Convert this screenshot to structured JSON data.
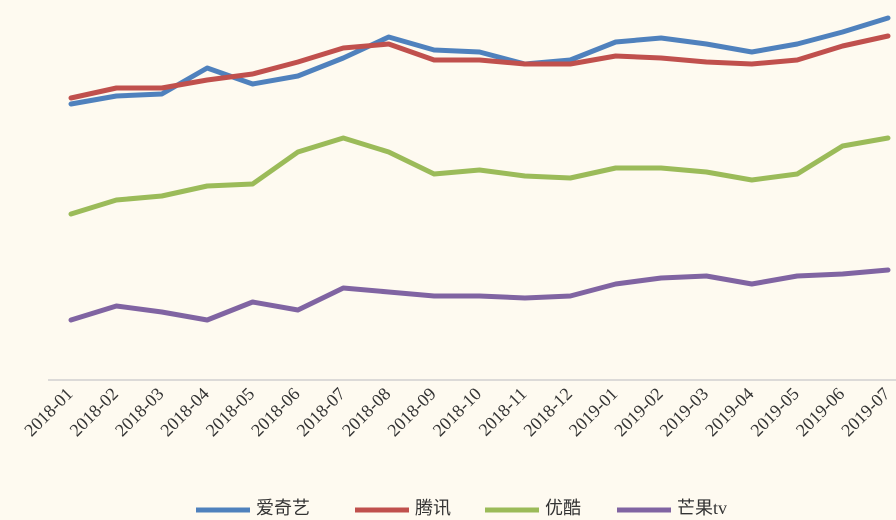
{
  "chart_data": {
    "type": "line",
    "categories": [
      "2018-01",
      "2018-02",
      "2018-03",
      "2018-04",
      "2018-05",
      "2018-06",
      "2018-07",
      "2018-08",
      "2018-09",
      "2018-10",
      "2018-11",
      "2018-12",
      "2019-01",
      "2019-02",
      "2019-03",
      "2019-04",
      "2019-05",
      "2019-06",
      "2019-07"
    ],
    "series": [
      {
        "name": "爱奇艺",
        "color": "#4f81bd",
        "values": [
          276,
          284,
          286,
          312,
          296,
          304,
          322,
          343,
          330,
          328,
          316,
          320,
          338,
          342,
          336,
          328,
          336,
          348,
          362
        ]
      },
      {
        "name": "腾讯",
        "color": "#c0504d",
        "values": [
          282,
          292,
          292,
          300,
          306,
          318,
          332,
          336,
          320,
          320,
          316,
          316,
          324,
          322,
          318,
          316,
          320,
          334,
          344
        ]
      },
      {
        "name": "优酷",
        "color": "#9bbb59",
        "values": [
          166,
          180,
          184,
          194,
          196,
          228,
          242,
          228,
          206,
          210,
          204,
          202,
          212,
          212,
          208,
          200,
          206,
          234,
          242
        ]
      },
      {
        "name": "芒果tv",
        "color": "#8064a2",
        "values": [
          60,
          74,
          68,
          60,
          78,
          70,
          92,
          88,
          84,
          84,
          82,
          84,
          96,
          102,
          104,
          96,
          104,
          106,
          110
        ]
      }
    ],
    "ylim": [
      0,
      380
    ],
    "legend": "bottom"
  }
}
